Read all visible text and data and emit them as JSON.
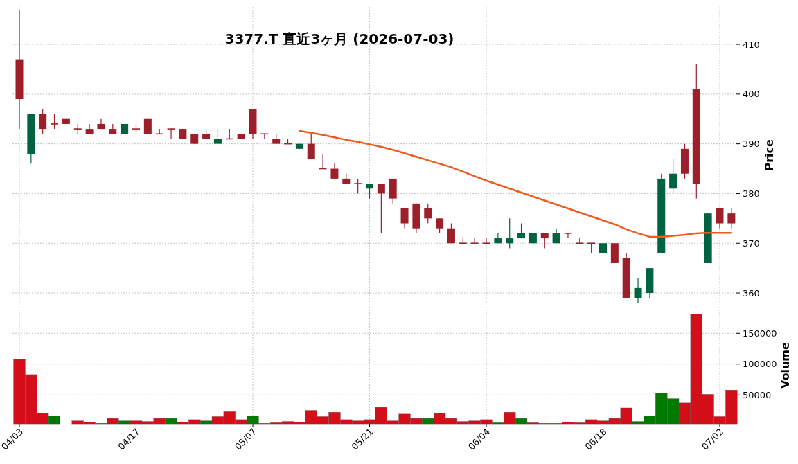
{
  "chart_data": [
    {
      "type": "candlestick",
      "title": "3377.T  直近3ヶ月  (2026-07-03)",
      "ylabel": "Price",
      "ohlc": [
        [
          407,
          417,
          393,
          399
        ],
        [
          388,
          396,
          386,
          396
        ],
        [
          396,
          397,
          392,
          393
        ],
        [
          394,
          396,
          393,
          394
        ],
        [
          395,
          395,
          394,
          394
        ],
        [
          393,
          394,
          392,
          393
        ],
        [
          393,
          394,
          392,
          392
        ],
        [
          394,
          395,
          393,
          393
        ],
        [
          393,
          394,
          392,
          392
        ],
        [
          392,
          394,
          392,
          394
        ],
        [
          393,
          394,
          392,
          393
        ],
        [
          395,
          395,
          392,
          392
        ],
        [
          392,
          393,
          392,
          392
        ],
        [
          393,
          393,
          391,
          393
        ],
        [
          393,
          393,
          391,
          391
        ],
        [
          392,
          392,
          390,
          390
        ],
        [
          392,
          393,
          391,
          391
        ],
        [
          390,
          393,
          390,
          391
        ],
        [
          391,
          393,
          391,
          391
        ],
        [
          392,
          392,
          391,
          391
        ],
        [
          397,
          397,
          391,
          392
        ],
        [
          392,
          392,
          391,
          392
        ],
        [
          391,
          392,
          390,
          390
        ],
        [
          390,
          391,
          390,
          390
        ],
        [
          389,
          390,
          389,
          390
        ],
        [
          390,
          392,
          387,
          387
        ],
        [
          385,
          388,
          385,
          385
        ],
        [
          385,
          386,
          383,
          383
        ],
        [
          383,
          384,
          382,
          382
        ],
        [
          382,
          383,
          380,
          382
        ],
        [
          381,
          382,
          379,
          382
        ],
        [
          382,
          382,
          372,
          380
        ],
        [
          383,
          383,
          378,
          379
        ],
        [
          377,
          377,
          373,
          374
        ],
        [
          378,
          378,
          372,
          373
        ],
        [
          377,
          378,
          374,
          375
        ],
        [
          375,
          375,
          372,
          373
        ],
        [
          373,
          374,
          370,
          370
        ],
        [
          370,
          371,
          370,
          370
        ],
        [
          370,
          371,
          370,
          370
        ],
        [
          370,
          371,
          370,
          370
        ],
        [
          370,
          372,
          370,
          371
        ],
        [
          370,
          375,
          369,
          371
        ],
        [
          371,
          374,
          371,
          372
        ],
        [
          370,
          372,
          370,
          372
        ],
        [
          372,
          372,
          369,
          371
        ],
        [
          370,
          373,
          370,
          372
        ],
        [
          372,
          372,
          371,
          372
        ],
        [
          370,
          371,
          370,
          370
        ],
        [
          370,
          370,
          368,
          370
        ],
        [
          368,
          370,
          368,
          370
        ],
        [
          370,
          370,
          366,
          366
        ],
        [
          367,
          368,
          359,
          359
        ],
        [
          359,
          363,
          358,
          361
        ],
        [
          360,
          365,
          359,
          365
        ],
        [
          368,
          384,
          368,
          383
        ],
        [
          381,
          387,
          380,
          384
        ],
        [
          389,
          390,
          383,
          384
        ],
        [
          401,
          406,
          379,
          382
        ],
        [
          366,
          376,
          366,
          376
        ],
        [
          377,
          377,
          373,
          374
        ],
        [
          376,
          377,
          373,
          374
        ]
      ],
      "colors": [
        "#9c1f2a",
        "#006340",
        "#9c1f2a",
        "#9c1f2a",
        "#9c1f2a",
        "#9c1f2a",
        "#9c1f2a",
        "#9c1f2a",
        "#9c1f2a",
        "#006340",
        "#9c1f2a",
        "#9c1f2a",
        "#9c1f2a",
        "#9c1f2a",
        "#9c1f2a",
        "#9c1f2a",
        "#9c1f2a",
        "#006340",
        "#9c1f2a",
        "#9c1f2a",
        "#9c1f2a",
        "#9c1f2a",
        "#9c1f2a",
        "#9c1f2a",
        "#006340",
        "#9c1f2a",
        "#9c1f2a",
        "#9c1f2a",
        "#9c1f2a",
        "#9c1f2a",
        "#006340",
        "#9c1f2a",
        "#9c1f2a",
        "#9c1f2a",
        "#9c1f2a",
        "#9c1f2a",
        "#9c1f2a",
        "#9c1f2a",
        "#9c1f2a",
        "#9c1f2a",
        "#9c1f2a",
        "#006340",
        "#006340",
        "#006340",
        "#006340",
        "#9c1f2a",
        "#006340",
        "#9c1f2a",
        "#9c1f2a",
        "#9c1f2a",
        "#006340",
        "#9c1f2a",
        "#9c1f2a",
        "#006340",
        "#006340",
        "#006340",
        "#006340",
        "#9c1f2a",
        "#9c1f2a",
        "#006340",
        "#9c1f2a",
        "#9c1f2a"
      ],
      "series": [
        {
          "type": "line",
          "color": "#f05a1e",
          "values": [
            null,
            null,
            null,
            null,
            null,
            null,
            null,
            null,
            null,
            null,
            null,
            null,
            null,
            null,
            null,
            null,
            null,
            null,
            null,
            null,
            null,
            null,
            null,
            null,
            392.6,
            392.2,
            391.8,
            391.3,
            390.8,
            390.4,
            389.9,
            389.4,
            388.8,
            388.1,
            387.4,
            386.7,
            386.0,
            385.3,
            384.4,
            383.5,
            382.6,
            381.8,
            381.0,
            380.2,
            379.4,
            378.6,
            377.8,
            377.0,
            376.2,
            375.4,
            374.6,
            373.8,
            372.8,
            372.0,
            371.3,
            371.3,
            371.5,
            371.7,
            372.0,
            372.1,
            372.1,
            372.1
          ]
        }
      ],
      "ylim": [
        358,
        417.5
      ],
      "yticks": [
        360,
        370,
        380,
        390,
        400,
        410
      ],
      "grid": true
    },
    {
      "type": "bar",
      "ylabel": "Volume",
      "categories": [
        "04/03",
        null,
        null,
        null,
        null,
        null,
        null,
        null,
        null,
        null,
        "04/17",
        null,
        null,
        null,
        null,
        null,
        null,
        null,
        null,
        null,
        "05/07",
        null,
        null,
        null,
        null,
        null,
        null,
        null,
        null,
        null,
        "05/21",
        null,
        null,
        null,
        null,
        null,
        null,
        null,
        null,
        null,
        "06/04",
        null,
        null,
        null,
        null,
        null,
        null,
        null,
        null,
        null,
        "06/18",
        null,
        null,
        null,
        null,
        null,
        null,
        null,
        null,
        null,
        "07/02",
        null
      ],
      "values": [
        108000,
        83000,
        20000,
        16000,
        null,
        8000,
        6000,
        4000,
        12000,
        8000,
        8000,
        7000,
        12000,
        12000,
        6000,
        10000,
        8000,
        15000,
        23000,
        10000,
        16000,
        4000,
        5000,
        7000,
        6000,
        25000,
        15000,
        22000,
        10000,
        8000,
        10000,
        30000,
        8000,
        19000,
        12000,
        12000,
        20000,
        12000,
        7000,
        8000,
        10000,
        5000,
        22000,
        12000,
        5000,
        4000,
        4000,
        6000,
        5000,
        10000,
        8000,
        12000,
        29000,
        7000,
        16000,
        53000,
        44000,
        37000,
        181000,
        51000,
        15000,
        58000
      ],
      "colors": [
        "#d40f1a",
        "#d40f1a",
        "#d40f1a",
        "#007a00",
        "#d40f1a",
        "#d40f1a",
        "#d40f1a",
        "#007a00",
        "#d40f1a",
        "#007a00",
        "#d40f1a",
        "#d40f1a",
        "#d40f1a",
        "#007a00",
        "#d40f1a",
        "#d40f1a",
        "#007a00",
        "#d40f1a",
        "#d40f1a",
        "#d40f1a",
        "#007a00",
        "#d40f1a",
        "#d40f1a",
        "#d40f1a",
        "#d40f1a",
        "#d40f1a",
        "#d40f1a",
        "#d40f1a",
        "#d40f1a",
        "#d40f1a",
        "#d40f1a",
        "#d40f1a",
        "#d40f1a",
        "#d40f1a",
        "#d40f1a",
        "#007a00",
        "#d40f1a",
        "#d40f1a",
        "#d40f1a",
        "#d40f1a",
        "#d40f1a",
        "#007a00",
        "#d40f1a",
        "#007a00",
        "#d40f1a",
        "#d40f1a",
        "#007a00",
        "#d40f1a",
        "#d40f1a",
        "#d40f1a",
        "#d40f1a",
        "#d40f1a",
        "#d40f1a",
        "#007a00",
        "#007a00",
        "#007a00",
        "#007a00",
        "#d40f1a",
        "#d40f1a",
        "#d40f1a",
        "#d40f1a",
        "#d40f1a"
      ],
      "ylim": [
        3000,
        193000
      ],
      "yticks": [
        50000,
        100000,
        150000
      ],
      "grid": true
    }
  ]
}
